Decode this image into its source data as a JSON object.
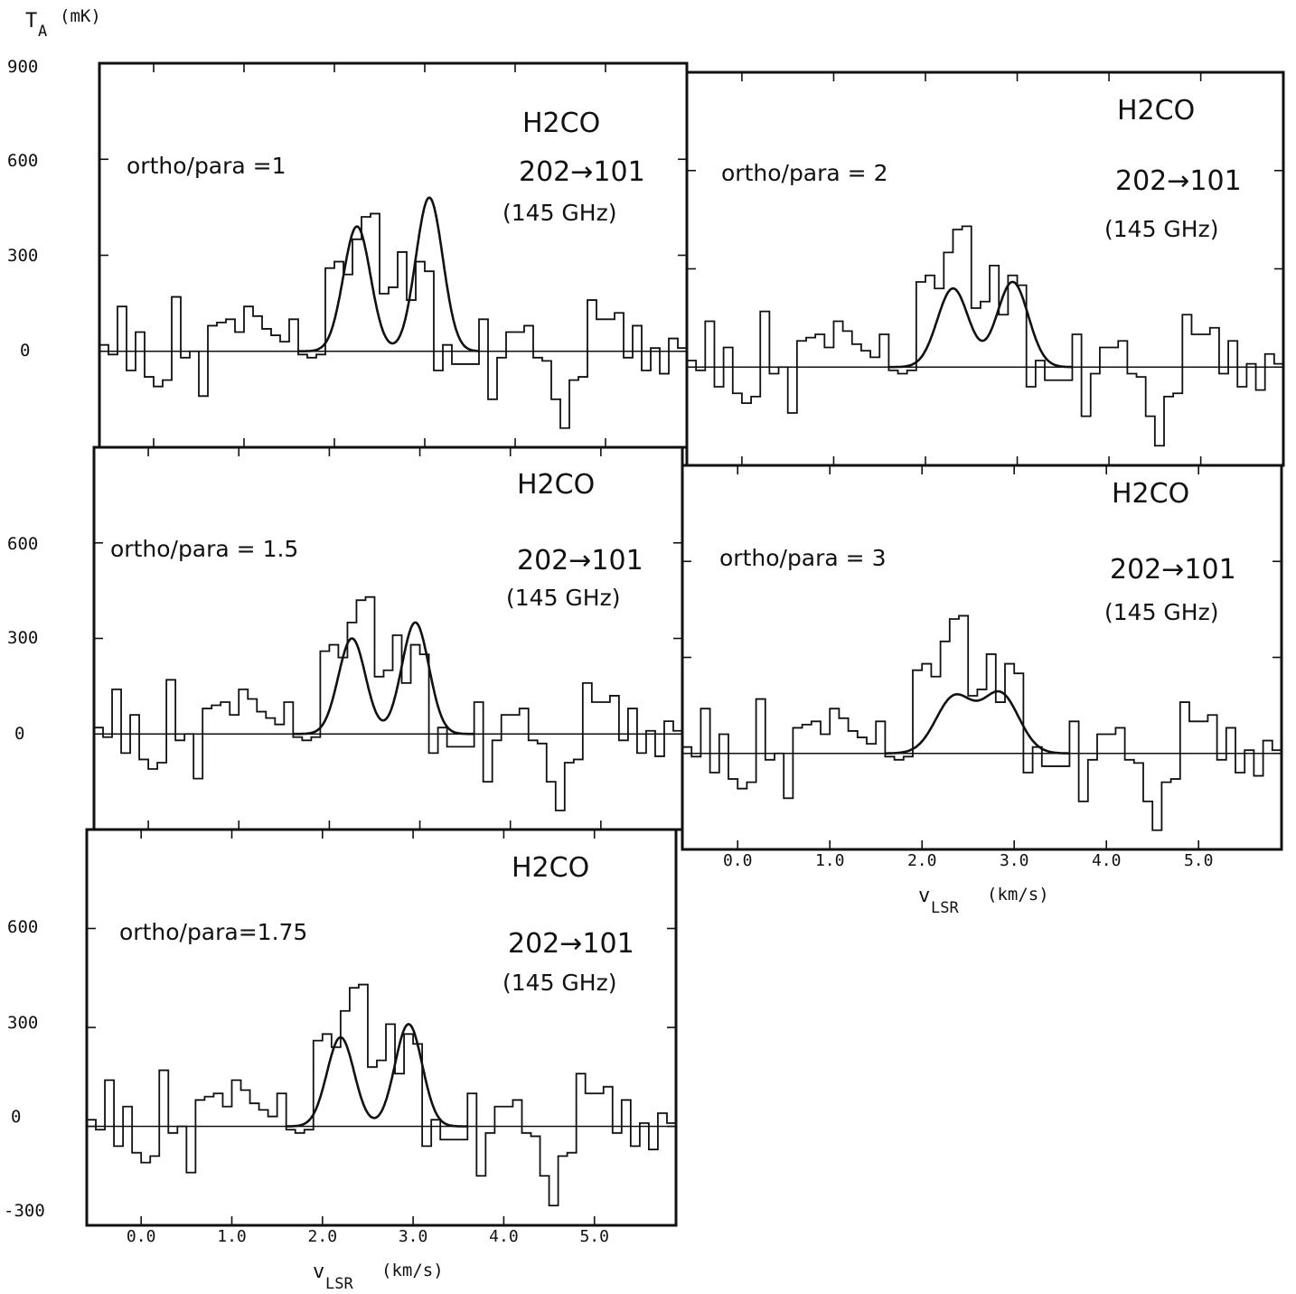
{
  "figure": {
    "y_axis_label_main": "T",
    "y_axis_label_sub": "A",
    "y_axis_unit": "(mK)",
    "x_axis_label_main": "v",
    "x_axis_label_sub": "LSR",
    "x_axis_unit": "(km/s)",
    "y_tick_labels_top": [
      "900",
      "600",
      "300",
      "0"
    ],
    "y_tick_labels_middle": [
      "600",
      "300",
      "0"
    ],
    "y_tick_labels_bottom": [
      "600",
      "300",
      "0",
      "-300"
    ],
    "x_tick_labels": [
      "0.0",
      "1.0",
      "2.0",
      "3.0",
      "4.0",
      "5.0"
    ]
  },
  "chart_data": [
    {
      "type": "line",
      "panel_label": "ortho/para =1",
      "molecule": "H2CO",
      "transition": "202→101",
      "frequency": "(145 GHz)",
      "xlim": [
        -0.6,
        5.9
      ],
      "ylim": [
        -300,
        900
      ],
      "x": [
        -0.6,
        -0.5,
        -0.4,
        -0.3,
        -0.2,
        -0.1,
        0.0,
        0.1,
        0.2,
        0.3,
        0.4,
        0.5,
        0.6,
        0.7,
        0.8,
        0.9,
        1.0,
        1.1,
        1.2,
        1.3,
        1.4,
        1.5,
        1.6,
        1.7,
        1.8,
        1.9,
        2.0,
        2.1,
        2.2,
        2.3,
        2.4,
        2.5,
        2.6,
        2.7,
        2.8,
        2.9,
        3.0,
        3.1,
        3.2,
        3.3,
        3.4,
        3.5,
        3.6,
        3.7,
        3.8,
        3.9,
        4.0,
        4.1,
        4.2,
        4.3,
        4.4,
        4.5,
        4.6,
        4.7,
        4.8,
        4.9,
        5.0,
        5.1,
        5.2,
        5.3,
        5.4,
        5.5,
        5.6,
        5.7,
        5.8
      ],
      "series": [
        {
          "name": "observed",
          "values": [
            20,
            -10,
            140,
            -60,
            60,
            -80,
            -110,
            -90,
            170,
            -20,
            0,
            -140,
            80,
            90,
            100,
            60,
            140,
            110,
            70,
            50,
            30,
            100,
            -10,
            -20,
            -10,
            260,
            280,
            240,
            350,
            420,
            430,
            180,
            200,
            310,
            160,
            280,
            250,
            -60,
            20,
            -40,
            -40,
            -40,
            100,
            -150,
            -20,
            60,
            60,
            80,
            -20,
            -30,
            -150,
            -240,
            -90,
            -80,
            160,
            100,
            100,
            120,
            -20,
            80,
            -60,
            10,
            -70,
            40,
            10
          ],
          "mark": "steps"
        },
        {
          "name": "fit",
          "mark": "curve",
          "components": [
            {
              "amp": 390,
              "center": 2.25,
              "sigma": 0.15
            },
            {
              "amp": 480,
              "center": 3.05,
              "sigma": 0.15
            }
          ]
        }
      ]
    },
    {
      "type": "line",
      "panel_label": "ortho/para = 2",
      "molecule": "H2CO",
      "transition": "202→101",
      "frequency": "(145 GHz)",
      "xlim": [
        -0.6,
        5.9
      ],
      "ylim": [
        -300,
        900
      ],
      "x": [
        -0.6,
        -0.5,
        -0.4,
        -0.3,
        -0.2,
        -0.1,
        0.0,
        0.1,
        0.2,
        0.3,
        0.4,
        0.5,
        0.6,
        0.7,
        0.8,
        0.9,
        1.0,
        1.1,
        1.2,
        1.3,
        1.4,
        1.5,
        1.6,
        1.7,
        1.8,
        1.9,
        2.0,
        2.1,
        2.2,
        2.3,
        2.4,
        2.5,
        2.6,
        2.7,
        2.8,
        2.9,
        3.0,
        3.1,
        3.2,
        3.3,
        3.4,
        3.5,
        3.6,
        3.7,
        3.8,
        3.9,
        4.0,
        4.1,
        4.2,
        4.3,
        4.4,
        4.5,
        4.6,
        4.7,
        4.8,
        4.9,
        5.0,
        5.1,
        5.2,
        5.3,
        5.4,
        5.5,
        5.6,
        5.7,
        5.8
      ],
      "series": [
        {
          "name": "observed",
          "values": [
            20,
            -10,
            140,
            -60,
            60,
            -80,
            -110,
            -90,
            170,
            -20,
            0,
            -140,
            80,
            90,
            100,
            60,
            140,
            110,
            70,
            50,
            30,
            100,
            -10,
            -20,
            -10,
            260,
            280,
            240,
            350,
            420,
            430,
            180,
            200,
            310,
            160,
            280,
            250,
            -60,
            20,
            -40,
            -40,
            -40,
            100,
            -150,
            -20,
            60,
            60,
            80,
            -20,
            -30,
            -150,
            -240,
            -90,
            -80,
            160,
            100,
            100,
            120,
            -20,
            80,
            -60,
            10,
            -70,
            40,
            10
          ],
          "mark": "steps"
        },
        {
          "name": "fit",
          "mark": "curve",
          "components": [
            {
              "amp": 240,
              "center": 2.3,
              "sigma": 0.17
            },
            {
              "amp": 260,
              "center": 2.95,
              "sigma": 0.17
            }
          ]
        }
      ]
    },
    {
      "type": "line",
      "panel_label": "ortho/para = 1.5",
      "molecule": "H2CO",
      "transition": "202→101",
      "frequency": "(145 GHz)",
      "xlim": [
        -0.6,
        5.9
      ],
      "ylim": [
        -300,
        900
      ],
      "x": [
        -0.6,
        -0.5,
        -0.4,
        -0.3,
        -0.2,
        -0.1,
        0.0,
        0.1,
        0.2,
        0.3,
        0.4,
        0.5,
        0.6,
        0.7,
        0.8,
        0.9,
        1.0,
        1.1,
        1.2,
        1.3,
        1.4,
        1.5,
        1.6,
        1.7,
        1.8,
        1.9,
        2.0,
        2.1,
        2.2,
        2.3,
        2.4,
        2.5,
        2.6,
        2.7,
        2.8,
        2.9,
        3.0,
        3.1,
        3.2,
        3.3,
        3.4,
        3.5,
        3.6,
        3.7,
        3.8,
        3.9,
        4.0,
        4.1,
        4.2,
        4.3,
        4.4,
        4.5,
        4.6,
        4.7,
        4.8,
        4.9,
        5.0,
        5.1,
        5.2,
        5.3,
        5.4,
        5.5,
        5.6,
        5.7,
        5.8
      ],
      "series": [
        {
          "name": "observed",
          "values": [
            20,
            -10,
            140,
            -60,
            60,
            -80,
            -110,
            -90,
            170,
            -20,
            0,
            -140,
            80,
            90,
            100,
            60,
            140,
            110,
            70,
            50,
            30,
            100,
            -10,
            -20,
            -10,
            260,
            280,
            240,
            350,
            420,
            430,
            180,
            200,
            310,
            160,
            280,
            250,
            -60,
            20,
            -40,
            -40,
            -40,
            100,
            -150,
            -20,
            60,
            60,
            80,
            -20,
            -30,
            -150,
            -240,
            -90,
            -80,
            160,
            100,
            100,
            120,
            -20,
            80,
            -60,
            10,
            -70,
            40,
            10
          ],
          "mark": "steps"
        },
        {
          "name": "fit",
          "mark": "curve",
          "components": [
            {
              "amp": 300,
              "center": 2.25,
              "sigma": 0.15
            },
            {
              "amp": 350,
              "center": 2.95,
              "sigma": 0.15
            }
          ]
        }
      ]
    },
    {
      "type": "line",
      "panel_label": "ortho/para = 3",
      "molecule": "H2CO",
      "transition": "202→101",
      "frequency": "(145 GHz)",
      "xlim": [
        -0.6,
        5.9
      ],
      "ylim": [
        -300,
        900
      ],
      "x": [
        -0.6,
        -0.5,
        -0.4,
        -0.3,
        -0.2,
        -0.1,
        0.0,
        0.1,
        0.2,
        0.3,
        0.4,
        0.5,
        0.6,
        0.7,
        0.8,
        0.9,
        1.0,
        1.1,
        1.2,
        1.3,
        1.4,
        1.5,
        1.6,
        1.7,
        1.8,
        1.9,
        2.0,
        2.1,
        2.2,
        2.3,
        2.4,
        2.5,
        2.6,
        2.7,
        2.8,
        2.9,
        3.0,
        3.1,
        3.2,
        3.3,
        3.4,
        3.5,
        3.6,
        3.7,
        3.8,
        3.9,
        4.0,
        4.1,
        4.2,
        4.3,
        4.4,
        4.5,
        4.6,
        4.7,
        4.8,
        4.9,
        5.0,
        5.1,
        5.2,
        5.3,
        5.4,
        5.5,
        5.6,
        5.7,
        5.8
      ],
      "series": [
        {
          "name": "observed",
          "values": [
            20,
            -10,
            140,
            -60,
            60,
            -80,
            -110,
            -90,
            170,
            -20,
            0,
            -140,
            80,
            90,
            100,
            60,
            140,
            110,
            70,
            50,
            30,
            100,
            -10,
            -20,
            -10,
            260,
            280,
            240,
            350,
            420,
            430,
            180,
            200,
            310,
            160,
            280,
            250,
            -60,
            20,
            -40,
            -40,
            -40,
            100,
            -150,
            -20,
            60,
            60,
            80,
            -20,
            -30,
            -150,
            -240,
            -90,
            -80,
            160,
            100,
            100,
            120,
            -20,
            80,
            -60,
            10,
            -70,
            40,
            10
          ],
          "mark": "steps"
        },
        {
          "name": "fit",
          "mark": "curve",
          "components": [
            {
              "amp": 175,
              "center": 2.35,
              "sigma": 0.2
            },
            {
              "amp": 185,
              "center": 2.85,
              "sigma": 0.2
            }
          ]
        }
      ]
    },
    {
      "type": "line",
      "panel_label": "ortho/para=1.75",
      "molecule": "H2CO",
      "transition": "202→101",
      "frequency": "(145 GHz)",
      "xlim": [
        -0.6,
        5.9
      ],
      "ylim": [
        -300,
        900
      ],
      "x": [
        -0.6,
        -0.5,
        -0.4,
        -0.3,
        -0.2,
        -0.1,
        0.0,
        0.1,
        0.2,
        0.3,
        0.4,
        0.5,
        0.6,
        0.7,
        0.8,
        0.9,
        1.0,
        1.1,
        1.2,
        1.3,
        1.4,
        1.5,
        1.6,
        1.7,
        1.8,
        1.9,
        2.0,
        2.1,
        2.2,
        2.3,
        2.4,
        2.5,
        2.6,
        2.7,
        2.8,
        2.9,
        3.0,
        3.1,
        3.2,
        3.3,
        3.4,
        3.5,
        3.6,
        3.7,
        3.8,
        3.9,
        4.0,
        4.1,
        4.2,
        4.3,
        4.4,
        4.5,
        4.6,
        4.7,
        4.8,
        4.9,
        5.0,
        5.1,
        5.2,
        5.3,
        5.4,
        5.5,
        5.6,
        5.7,
        5.8
      ],
      "series": [
        {
          "name": "observed",
          "values": [
            20,
            -10,
            140,
            -60,
            60,
            -80,
            -110,
            -90,
            170,
            -20,
            0,
            -140,
            80,
            90,
            100,
            60,
            140,
            110,
            70,
            50,
            30,
            100,
            -10,
            -20,
            -10,
            260,
            280,
            240,
            350,
            420,
            430,
            180,
            200,
            310,
            160,
            280,
            250,
            -60,
            20,
            -40,
            -40,
            -40,
            100,
            -150,
            -20,
            60,
            60,
            80,
            -20,
            -30,
            -150,
            -240,
            -90,
            -80,
            160,
            100,
            100,
            120,
            -20,
            80,
            -60,
            10,
            -70,
            40,
            10
          ],
          "mark": "steps"
        },
        {
          "name": "fit",
          "mark": "curve",
          "components": [
            {
              "amp": 270,
              "center": 2.2,
              "sigma": 0.15
            },
            {
              "amp": 310,
              "center": 2.95,
              "sigma": 0.15
            }
          ]
        }
      ]
    }
  ]
}
